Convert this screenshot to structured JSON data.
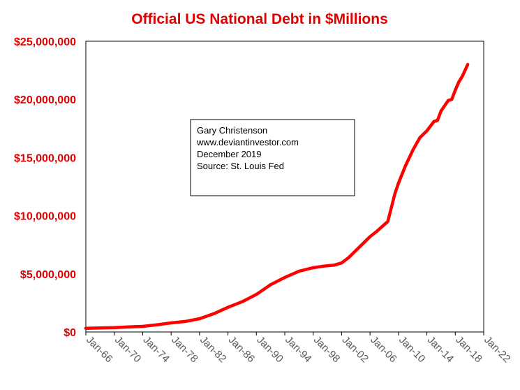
{
  "chart_data": {
    "type": "line",
    "title": "Official US National Debt in $Millions",
    "xlabel": "",
    "ylabel": "",
    "ylim": [
      0,
      25000000
    ],
    "xlim": [
      "1966-01",
      "2022-01"
    ],
    "y_ticks": [
      0,
      5000000,
      10000000,
      15000000,
      20000000,
      25000000
    ],
    "y_tick_labels": [
      "$0",
      "$5,000,000",
      "$10,000,000",
      "$15,000,000",
      "$20,000,000",
      "$25,000,000"
    ],
    "x_ticks": [
      "1966-01",
      "1970-01",
      "1974-01",
      "1978-01",
      "1982-01",
      "1986-01",
      "1990-01",
      "1994-01",
      "1998-01",
      "2002-01",
      "2006-01",
      "2010-01",
      "2014-01",
      "2018-01",
      "2022-01"
    ],
    "x_tick_labels": [
      "Jan-66",
      "Jan-70",
      "Jan-74",
      "Jan-78",
      "Jan-82",
      "Jan-86",
      "Jan-90",
      "Jan-94",
      "Jan-98",
      "Jan-02",
      "Jan-06",
      "Jan-10",
      "Jan-14",
      "Jan-18",
      "Jan-22"
    ],
    "grid": false,
    "series": [
      {
        "color": "#ff0000",
        "x": [
          "1966-01",
          "1968-01",
          "1970-01",
          "1972-01",
          "1974-01",
          "1976-01",
          "1978-01",
          "1980-01",
          "1982-01",
          "1984-01",
          "1986-01",
          "1988-01",
          "1990-01",
          "1992-01",
          "1994-01",
          "1996-01",
          "1998-01",
          "1999-07",
          "2000-01",
          "2001-01",
          "2002-01",
          "2003-01",
          "2004-01",
          "2005-01",
          "2006-01",
          "2007-01",
          "2008-01",
          "2008-07",
          "2009-01",
          "2009-07",
          "2010-01",
          "2011-01",
          "2012-01",
          "2013-01",
          "2014-01",
          "2015-01",
          "2015-07",
          "2016-01",
          "2017-01",
          "2017-07",
          "2018-01",
          "2018-07",
          "2019-01",
          "2019-10"
        ],
        "values": [
          320000,
          340000,
          370000,
          430000,
          480000,
          620000,
          780000,
          910000,
          1140000,
          1570000,
          2120000,
          2600000,
          3230000,
          4060000,
          4690000,
          5220000,
          5530000,
          5660000,
          5700000,
          5760000,
          5940000,
          6400000,
          7000000,
          7600000,
          8200000,
          8680000,
          9230000,
          9500000,
          10700000,
          11900000,
          12800000,
          14300000,
          15600000,
          16700000,
          17300000,
          18100000,
          18200000,
          19000000,
          19900000,
          20000000,
          20800000,
          21500000,
          22000000,
          23000000
        ]
      }
    ],
    "annotations": [
      "Gary Christenson",
      "www.deviantinvestor.com",
      "December 2019",
      "Source: St. Louis Fed"
    ]
  }
}
